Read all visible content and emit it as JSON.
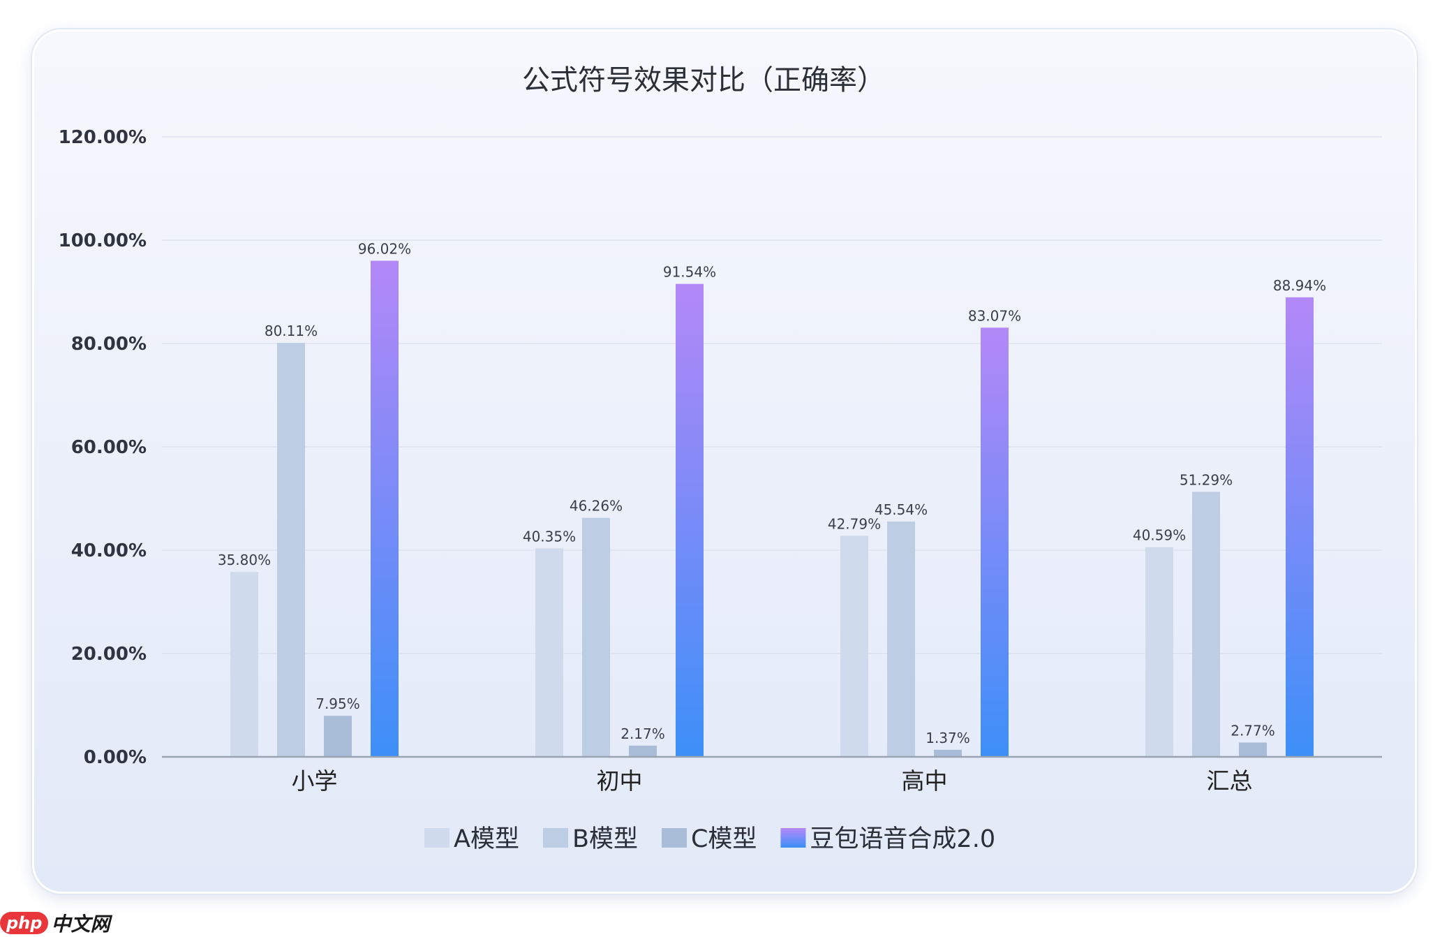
{
  "chart_data": {
    "type": "bar",
    "title": "公式符号效果对比（正确率）",
    "categories": [
      "小学",
      "初中",
      "高中",
      "汇总"
    ],
    "series": [
      {
        "name": "A模型",
        "values": [
          35.8,
          40.35,
          42.79,
          40.59
        ],
        "labels": [
          "35.80%",
          "40.35%",
          "42.79%",
          "40.59%"
        ],
        "color": "#cfdbec"
      },
      {
        "name": "B模型",
        "values": [
          80.11,
          46.26,
          45.54,
          51.29
        ],
        "labels": [
          "80.11%",
          "46.26%",
          "45.54%",
          "51.29%"
        ],
        "color": "#bccde4"
      },
      {
        "name": "C模型",
        "values": [
          7.95,
          2.17,
          1.37,
          2.77
        ],
        "labels": [
          "7.95%",
          "2.17%",
          "1.37%",
          "2.77%"
        ],
        "color": "#a9bcd8"
      },
      {
        "name": "豆包语音合成2.0",
        "values": [
          96.02,
          91.54,
          83.07,
          88.94
        ],
        "labels": [
          "96.02%",
          "91.54%",
          "83.07%",
          "88.94%"
        ],
        "gradient": [
          "#b388f7",
          "#3d8ff8"
        ]
      }
    ],
    "yticks": [
      "0.00%",
      "20.00%",
      "40.00%",
      "60.00%",
      "80.00%",
      "100.00%",
      "120.00%"
    ],
    "ylim": [
      0,
      120
    ],
    "grid": true,
    "legend_position": "bottom-center"
  },
  "watermark": {
    "brand": "php",
    "suffix": "中文网"
  }
}
